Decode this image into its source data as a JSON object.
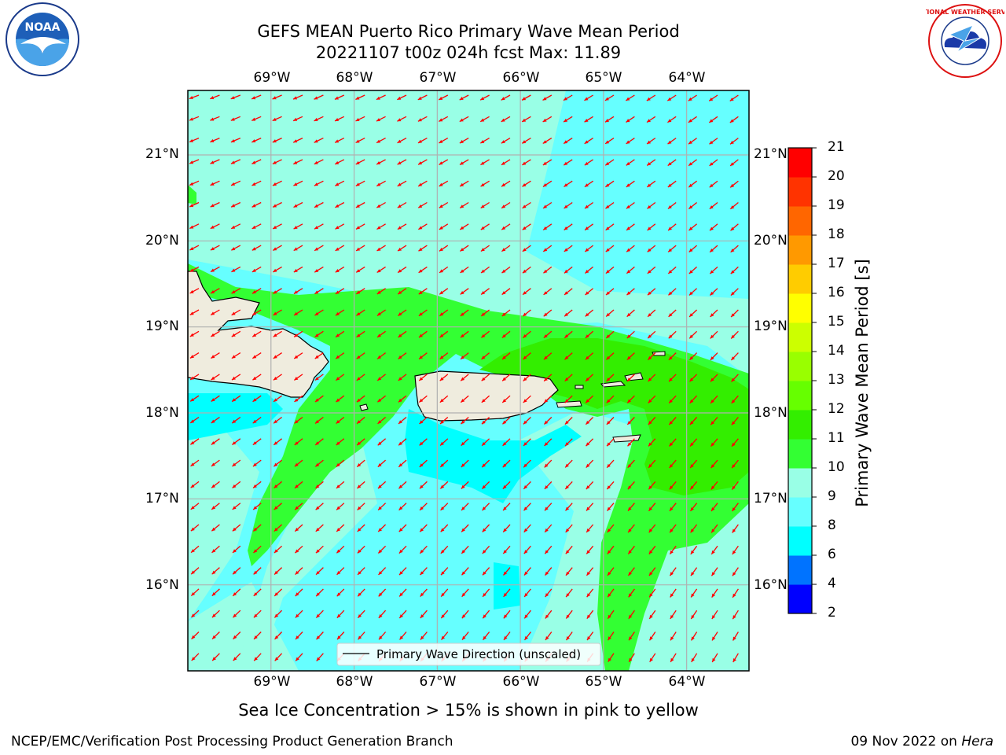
{
  "title": {
    "line1": "GEFS MEAN Puerto Rico Primary Wave Mean Period",
    "line2": "20221107 t00z 024h fcst   Max: 11.89"
  },
  "logos": {
    "left": {
      "icon": "noaa-logo",
      "text": "NOAA"
    },
    "right": {
      "icon": "nws-logo",
      "text": "NATIONAL WEATHER SERVICE"
    }
  },
  "map": {
    "lon_labels": [
      "69°W",
      "68°W",
      "67°W",
      "66°W",
      "65°W",
      "64°W"
    ],
    "lat_labels": [
      "21°N",
      "20°N",
      "19°N",
      "18°N",
      "17°N",
      "16°N"
    ],
    "lon_range": [
      -70.0,
      -63.25
    ],
    "lat_range": [
      15.0,
      21.75
    ],
    "legend": "Primary Wave Direction (unscaled)",
    "arrow_color": "#ff0000",
    "coast_color": "#000000",
    "land_color": "#efecde"
  },
  "colorbar": {
    "label": "Primary Wave Mean Period [s]",
    "ticks": [
      "2",
      "4",
      "6",
      "8",
      "9",
      "10",
      "11",
      "12",
      "13",
      "14",
      "15",
      "16",
      "17",
      "18",
      "19",
      "20",
      "21"
    ],
    "colors": [
      "#0000ff",
      "#0073ff",
      "#00ffff",
      "#66ffff",
      "#99ffe6",
      "#33ff33",
      "#33ee00",
      "#66ff00",
      "#99ff00",
      "#ccff00",
      "#ffff00",
      "#ffcc00",
      "#ff9900",
      "#ff6600",
      "#ff3300",
      "#ff0000"
    ]
  },
  "note": "Sea Ice Concentration > 15% is shown in pink to yellow",
  "footer": {
    "left": "NCEP/EMC/Verification Post Processing Product Generation Branch",
    "right_date": "09 Nov 2022 on",
    "right_machine": "Hera"
  }
}
